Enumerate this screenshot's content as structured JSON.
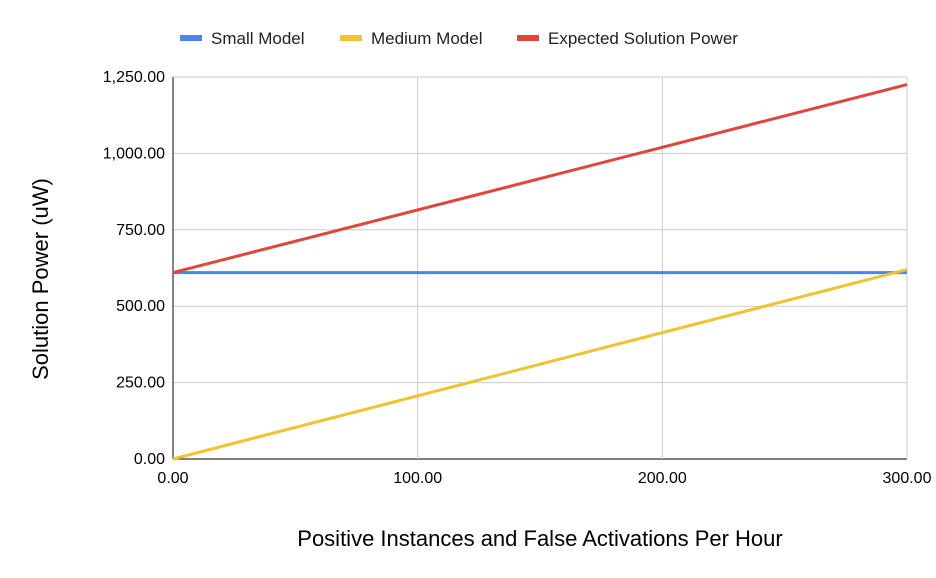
{
  "chart_data": {
    "type": "line",
    "title": "",
    "xlabel": "Positive Instances and False Activations Per Hour",
    "ylabel": "Solution Power (uW)",
    "xlim": [
      0,
      300
    ],
    "ylim": [
      0,
      1250
    ],
    "x_ticks": [
      0,
      100,
      200,
      300
    ],
    "x_tick_labels": [
      "0.00",
      "100.00",
      "200.00",
      "300.00"
    ],
    "y_ticks": [
      0,
      250,
      500,
      750,
      1000,
      1250
    ],
    "y_tick_labels": [
      "0.00",
      "250.00",
      "500.00",
      "750.00",
      "1,000.00",
      "1,250.00"
    ],
    "grid": true,
    "legend_position": "top",
    "series": [
      {
        "name": "Small Model",
        "color": "#4a86e8",
        "x": [
          0,
          300
        ],
        "y": [
          610,
          610
        ]
      },
      {
        "name": "Medium Model",
        "color": "#f1c232",
        "x": [
          0,
          300
        ],
        "y": [
          0,
          620
        ]
      },
      {
        "name": "Expected Solution Power",
        "color": "#e0463b",
        "x": [
          0,
          300
        ],
        "y": [
          610,
          1225
        ]
      }
    ]
  }
}
